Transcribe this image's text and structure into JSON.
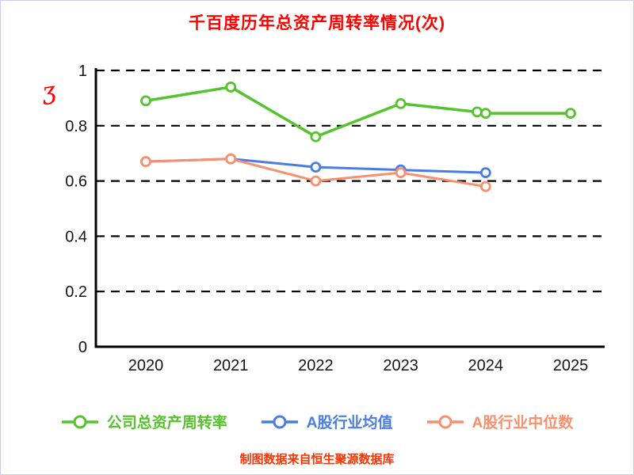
{
  "title": "千百度历年总资产周转率情况(次)",
  "caption": "制图数据来自恒生聚源数据库",
  "annotation_mark": "ʒ",
  "colors": {
    "title": "#ff0000",
    "caption": "#ff3300",
    "annotation": "#ff0000",
    "axis": "#000000",
    "grid": "#000000",
    "tick_label": "#141414"
  },
  "chart_data": {
    "type": "line",
    "title": "千百度历年总资产周转率情况(次)",
    "xlabel": "",
    "ylabel": "",
    "ylim": [
      0,
      1
    ],
    "yticks": [
      0,
      0.2,
      0.4,
      0.6,
      0.8,
      1
    ],
    "xticks": [
      2020,
      2021,
      2022,
      2023,
      2024,
      2025
    ],
    "grid": "dashed-horizontal",
    "legend_position": "bottom",
    "series": [
      {
        "name": "公司总资产周转率",
        "color": "#56c22d",
        "x": [
          2020,
          2021,
          2022,
          2023,
          2023.9,
          2024,
          2025
        ],
        "y": [
          0.89,
          0.94,
          0.76,
          0.88,
          0.85,
          0.845,
          0.845
        ]
      },
      {
        "name": "A股行业均值",
        "color": "#4a7de2",
        "x": [
          2020,
          2021,
          2022,
          2023,
          2024
        ],
        "y": [
          0.67,
          0.68,
          0.65,
          0.64,
          0.63
        ]
      },
      {
        "name": "A股行业中位数",
        "color": "#f8906e",
        "x": [
          2020,
          2021,
          2022,
          2023,
          2024
        ],
        "y": [
          0.67,
          0.68,
          0.6,
          0.63,
          0.58
        ]
      }
    ]
  }
}
